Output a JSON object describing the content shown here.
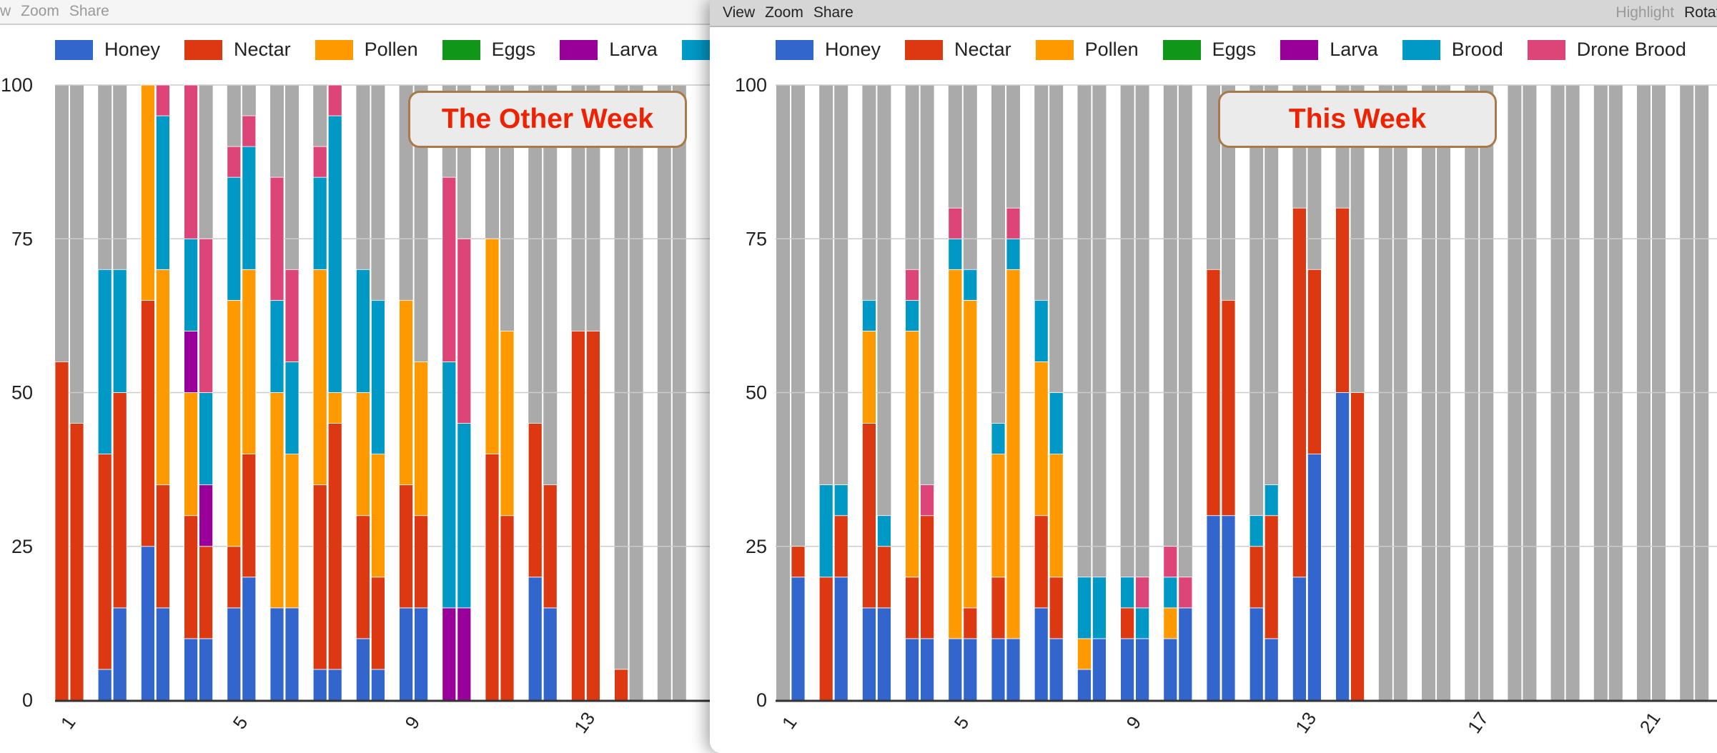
{
  "left_window": {
    "menu": [
      "View",
      "Zoom",
      "Share"
    ]
  },
  "right_window": {
    "menu": [
      "View",
      "Zoom",
      "Share"
    ],
    "menu_right": [
      "Highlight",
      "Rotate"
    ]
  },
  "colors": {
    "Honey": "#3366cc",
    "Nectar": "#dc3912",
    "Pollen": "#ff9900",
    "Eggs": "#109618",
    "Larva": "#990099",
    "Brood": "#0099c6",
    "Drone Brood": "#dd4477",
    "empty": "#aaaaaa",
    "title_text": "#ee2200",
    "title_border": "#a87a4a"
  },
  "chart_data": [
    {
      "type": "bar",
      "stacked": true,
      "bars_per_category": 2,
      "title": "The Other Week",
      "series": [
        "Honey",
        "Nectar",
        "Pollen",
        "Eggs",
        "Larva",
        "Brood",
        "Drone Brood"
      ],
      "remainder_fill": "empty",
      "legend": "top",
      "grid": true,
      "ylim": [
        0,
        100
      ],
      "y_ticks": [
        "0",
        "25",
        "50",
        "75",
        "100"
      ],
      "x_ticks": [
        "1",
        "5",
        "9",
        "13"
      ],
      "categories": [
        "1",
        "2",
        "3",
        "4",
        "5",
        "6",
        "7",
        "8",
        "9",
        "10",
        "11",
        "12",
        "13",
        "14",
        "15"
      ],
      "bars": [
        [
          [
            0,
            55,
            0,
            0,
            0,
            0,
            0
          ],
          [
            0,
            45,
            0,
            0,
            0,
            0,
            0
          ]
        ],
        [
          [
            5,
            35,
            0,
            0,
            0,
            30,
            0
          ],
          [
            15,
            35,
            0,
            0,
            0,
            20,
            0
          ]
        ],
        [
          [
            25,
            40,
            35,
            0,
            0,
            0,
            0
          ],
          [
            15,
            20,
            35,
            0,
            0,
            25,
            5
          ]
        ],
        [
          [
            10,
            20,
            20,
            0,
            10,
            15,
            25
          ],
          [
            10,
            15,
            0,
            0,
            10,
            15,
            25
          ]
        ],
        [
          [
            15,
            10,
            40,
            0,
            0,
            20,
            5
          ],
          [
            20,
            20,
            30,
            0,
            0,
            20,
            5
          ]
        ],
        [
          [
            15,
            0,
            35,
            0,
            0,
            15,
            20
          ],
          [
            15,
            0,
            25,
            0,
            0,
            15,
            15
          ]
        ],
        [
          [
            5,
            30,
            35,
            0,
            0,
            15,
            5
          ],
          [
            5,
            40,
            5,
            0,
            0,
            45,
            5
          ]
        ],
        [
          [
            10,
            20,
            20,
            0,
            0,
            20,
            0
          ],
          [
            5,
            15,
            20,
            0,
            0,
            25,
            0
          ]
        ],
        [
          [
            15,
            20,
            30,
            0,
            0,
            0,
            0
          ],
          [
            15,
            15,
            25,
            0,
            0,
            0,
            0
          ]
        ],
        [
          [
            0,
            0,
            0,
            0,
            15,
            40,
            30
          ],
          [
            0,
            0,
            0,
            0,
            15,
            30,
            30
          ]
        ],
        [
          [
            0,
            40,
            35,
            0,
            0,
            0,
            0
          ],
          [
            0,
            30,
            30,
            0,
            0,
            0,
            0
          ]
        ],
        [
          [
            20,
            25,
            0,
            0,
            0,
            0,
            0
          ],
          [
            15,
            20,
            0,
            0,
            0,
            0,
            0
          ]
        ],
        [
          [
            0,
            60,
            0,
            0,
            0,
            0,
            0
          ],
          [
            0,
            60,
            0,
            0,
            0,
            0,
            0
          ]
        ],
        [
          [
            0,
            5,
            0,
            0,
            0,
            0,
            0
          ],
          [
            0,
            0,
            0,
            0,
            0,
            0,
            0
          ]
        ],
        [
          [
            0,
            0,
            0,
            0,
            0,
            0,
            0
          ],
          [
            0,
            0,
            0,
            0,
            0,
            0,
            0
          ]
        ]
      ]
    },
    {
      "type": "bar",
      "stacked": true,
      "bars_per_category": 2,
      "title": "This Week",
      "series": [
        "Honey",
        "Nectar",
        "Pollen",
        "Eggs",
        "Larva",
        "Brood",
        "Drone Brood"
      ],
      "remainder_fill": "empty",
      "legend": "top",
      "grid": true,
      "ylim": [
        0,
        100
      ],
      "y_ticks": [
        "0",
        "25",
        "50",
        "75",
        "100"
      ],
      "x_ticks": [
        "1",
        "5",
        "9",
        "13",
        "17",
        "21"
      ],
      "categories": [
        "1",
        "2",
        "3",
        "4",
        "5",
        "6",
        "7",
        "8",
        "9",
        "10",
        "11",
        "12",
        "13",
        "14",
        "15",
        "16",
        "17",
        "18",
        "19",
        "20",
        "21",
        "22"
      ],
      "bars": [
        [
          [
            0,
            0,
            0,
            0,
            0,
            0,
            0
          ],
          [
            20,
            5,
            0,
            0,
            0,
            0,
            0
          ]
        ],
        [
          [
            0,
            20,
            0,
            0,
            0,
            15,
            0
          ],
          [
            20,
            10,
            0,
            0,
            0,
            5,
            0
          ]
        ],
        [
          [
            15,
            30,
            15,
            0,
            0,
            5,
            0
          ],
          [
            15,
            10,
            0,
            0,
            0,
            5,
            0
          ]
        ],
        [
          [
            10,
            10,
            40,
            0,
            0,
            5,
            5
          ],
          [
            10,
            20,
            0,
            0,
            0,
            0,
            5
          ]
        ],
        [
          [
            10,
            0,
            60,
            0,
            0,
            5,
            5
          ],
          [
            10,
            5,
            50,
            0,
            0,
            5,
            0
          ]
        ],
        [
          [
            10,
            10,
            20,
            0,
            0,
            5,
            0
          ],
          [
            10,
            0,
            60,
            0,
            0,
            5,
            5
          ]
        ],
        [
          [
            15,
            15,
            25,
            0,
            0,
            10,
            0
          ],
          [
            10,
            10,
            20,
            0,
            0,
            10,
            0
          ]
        ],
        [
          [
            5,
            0,
            5,
            0,
            0,
            10,
            0
          ],
          [
            10,
            0,
            0,
            0,
            0,
            10,
            0
          ]
        ],
        [
          [
            10,
            5,
            0,
            0,
            0,
            5,
            0
          ],
          [
            10,
            0,
            0,
            0,
            0,
            5,
            5
          ]
        ],
        [
          [
            10,
            0,
            5,
            0,
            0,
            5,
            5
          ],
          [
            15,
            0,
            0,
            0,
            0,
            0,
            5
          ]
        ],
        [
          [
            30,
            40,
            0,
            0,
            0,
            0,
            0
          ],
          [
            30,
            35,
            0,
            0,
            0,
            0,
            0
          ]
        ],
        [
          [
            15,
            10,
            0,
            0,
            0,
            5,
            0
          ],
          [
            10,
            20,
            0,
            0,
            0,
            5,
            0
          ]
        ],
        [
          [
            20,
            60,
            0,
            0,
            0,
            0,
            0
          ],
          [
            40,
            30,
            0,
            0,
            0,
            0,
            0
          ]
        ],
        [
          [
            50,
            30,
            0,
            0,
            0,
            0,
            0
          ],
          [
            0,
            50,
            0,
            0,
            0,
            0,
            0
          ]
        ],
        [
          [
            0,
            0,
            0,
            0,
            0,
            0,
            0
          ],
          [
            0,
            0,
            0,
            0,
            0,
            0,
            0
          ]
        ],
        [
          [
            0,
            0,
            0,
            0,
            0,
            0,
            0
          ],
          [
            0,
            0,
            0,
            0,
            0,
            0,
            0
          ]
        ],
        [
          [
            0,
            0,
            0,
            0,
            0,
            0,
            0
          ],
          [
            0,
            0,
            0,
            0,
            0,
            0,
            0
          ]
        ],
        [
          [
            0,
            0,
            0,
            0,
            0,
            0,
            0
          ],
          [
            0,
            0,
            0,
            0,
            0,
            0,
            0
          ]
        ],
        [
          [
            0,
            0,
            0,
            0,
            0,
            0,
            0
          ],
          [
            0,
            0,
            0,
            0,
            0,
            0,
            0
          ]
        ],
        [
          [
            0,
            0,
            0,
            0,
            0,
            0,
            0
          ],
          [
            0,
            0,
            0,
            0,
            0,
            0,
            0
          ]
        ],
        [
          [
            0,
            0,
            0,
            0,
            0,
            0,
            0
          ],
          [
            0,
            0,
            0,
            0,
            0,
            0,
            0
          ]
        ],
        [
          [
            0,
            0,
            0,
            0,
            0,
            0,
            0
          ],
          [
            0,
            0,
            0,
            0,
            0,
            0,
            0
          ]
        ]
      ]
    }
  ]
}
